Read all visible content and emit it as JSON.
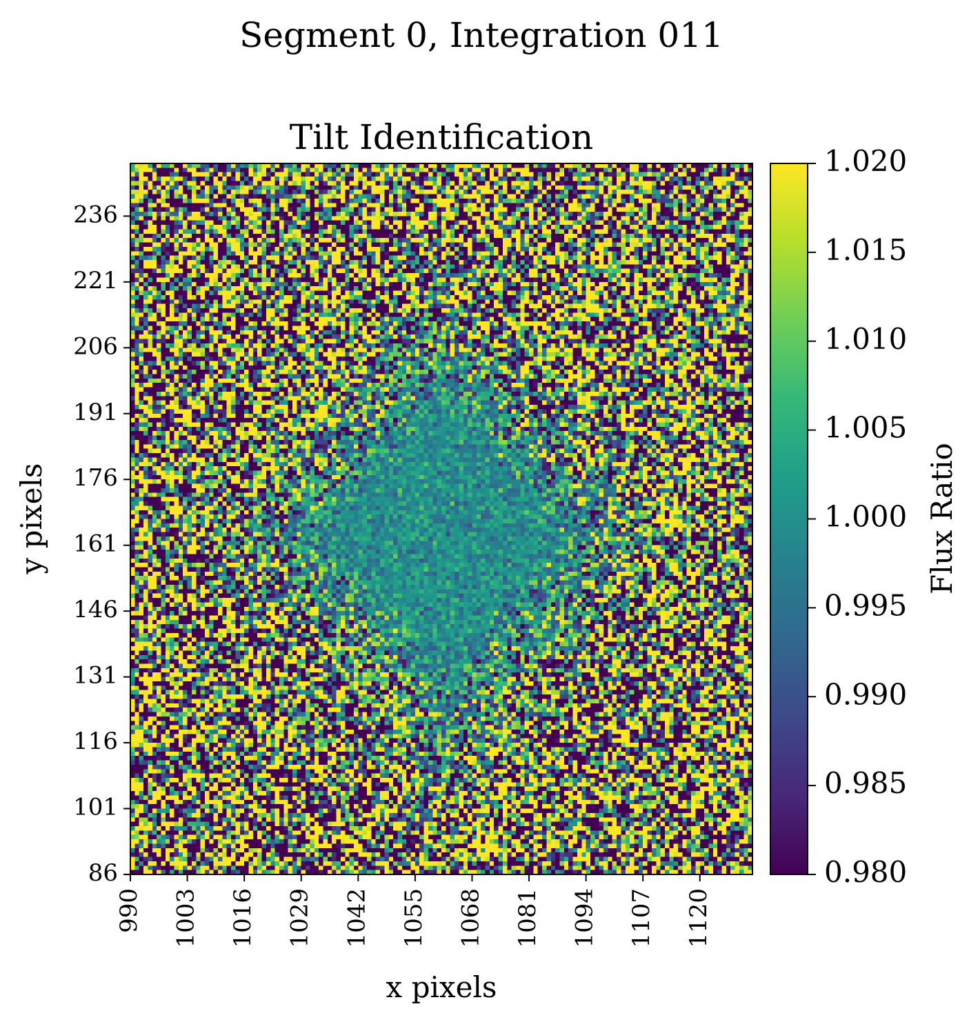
{
  "suptitle": "Segment 0, Integration 011",
  "chart_data": {
    "type": "heatmap",
    "title": "Tilt Identification",
    "xlabel": "x pixels",
    "ylabel": "y pixels",
    "xlim": [
      990,
      1132
    ],
    "ylim": [
      86,
      248
    ],
    "x_ticks": [
      990,
      1003,
      1016,
      1029,
      1042,
      1055,
      1068,
      1081,
      1094,
      1107,
      1120
    ],
    "y_ticks": [
      86,
      101,
      116,
      131,
      146,
      161,
      176,
      191,
      206,
      221,
      236
    ],
    "colorbar": {
      "label": "Flux Ratio",
      "min": 0.98,
      "max": 1.02,
      "colormap": "viridis",
      "ticks": [
        "0.980",
        "0.985",
        "0.990",
        "0.995",
        "1.000",
        "1.005",
        "1.010",
        "1.015",
        "1.020"
      ]
    },
    "description_of_pattern": "Noisy pixel map of flux ratios; saturated yellow/dark-purple noise near the edges with a smoother green-teal region (values near 1.000) in the interior forming a tilted diamond-like structure."
  },
  "colors": {
    "viridis_stops": [
      "#440154",
      "#482878",
      "#3e4989",
      "#31688e",
      "#26828e",
      "#1f9e89",
      "#35b779",
      "#6ece58",
      "#b5de2b",
      "#fde725"
    ]
  }
}
